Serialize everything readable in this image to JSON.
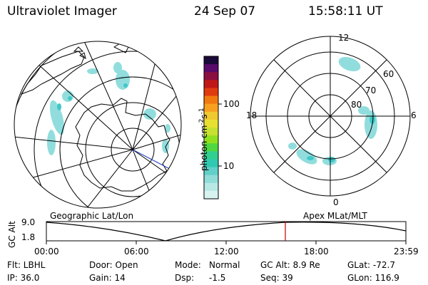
{
  "header": {
    "title": "Ultraviolet Imager",
    "date": "24 Sep 07",
    "time": "15:58:11 UT"
  },
  "colorbar": {
    "unit_main": "photon cm",
    "unit_exp1": "-2",
    "unit_mid": "s",
    "unit_exp2": "-1",
    "tick_100": "100",
    "tick_10": "10",
    "colors": [
      "#1a0a3a",
      "#5a0a6a",
      "#8a1040",
      "#c01818",
      "#e03a10",
      "#f07a10",
      "#f8a020",
      "#f0c830",
      "#e8e030",
      "#c8e030",
      "#90e020",
      "#50d840",
      "#30d090",
      "#30c8b0",
      "#60d0c8",
      "#90dcd8",
      "#b8e8e6",
      "#d8f2f0"
    ]
  },
  "right_polar": {
    "label_12": "12",
    "label_18": "18",
    "label_6": "6",
    "label_0": "0",
    "label_60": "60",
    "label_70": "70",
    "label_80": "80"
  },
  "alt_plot": {
    "left_title": "Geographic Lat/Lon",
    "right_title": "Apex MLat/MLT",
    "ylabel": "GC Alt",
    "y_top": "9.0",
    "y_bottom": "1.8",
    "x_ticks": [
      "00:00",
      "06:00",
      "12:00",
      "18:00",
      "23:59"
    ]
  },
  "params": {
    "row1": {
      "flt": "Flt: LBHL",
      "door": "Door: Open",
      "mode_label": "Mode:",
      "mode_value": "Normal",
      "gcalt": "GC Alt: 8.9 Re",
      "glat": "GLat: -72.7"
    },
    "row2": {
      "ip": "IP: 36.0",
      "gain": "Gain: 14",
      "dsp_label": "Dsp:",
      "dsp_value": "-1.5",
      "seq": "Seq: 39",
      "glon": "GLon: 116.9"
    }
  }
}
